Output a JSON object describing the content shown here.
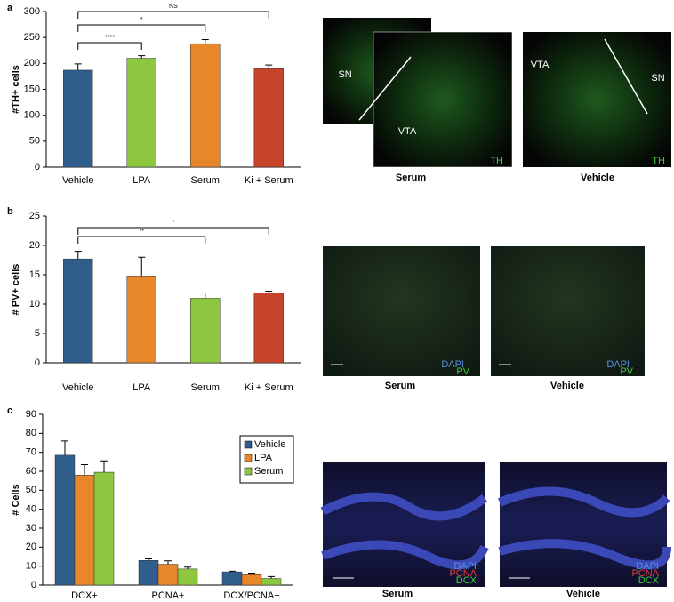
{
  "panel_labels": [
    "a",
    "b",
    "c"
  ],
  "chart_data": [
    {
      "type": "bar",
      "y_label": "#TH+ cells",
      "categories": [
        "Vehicle",
        "LPA",
        "Serum",
        "Ki + Serum"
      ],
      "values": [
        187,
        210,
        238,
        190
      ],
      "errors": [
        12,
        5,
        8,
        7
      ],
      "colors": [
        "#2f5d8c",
        "#8dc63f",
        "#e8862a",
        "#c7432b"
      ],
      "ylim": [
        0,
        300
      ],
      "yticks": [
        0,
        50,
        100,
        150,
        200,
        250,
        300
      ],
      "significance": [
        {
          "from": "Vehicle",
          "to": "LPA",
          "label": "****"
        },
        {
          "from": "Vehicle",
          "to": "Serum",
          "label": "*"
        },
        {
          "from": "Vehicle",
          "to": "Ki + Serum",
          "label": "NS"
        }
      ]
    },
    {
      "type": "bar",
      "y_label": "# PV+ cells",
      "categories": [
        "Vehicle",
        "LPA",
        "Serum",
        "Ki + Serum"
      ],
      "values": [
        17.7,
        14.8,
        11,
        11.9
      ],
      "errors": [
        1.3,
        3.2,
        0.9,
        0.3
      ],
      "colors": [
        "#2f5d8c",
        "#e8862a",
        "#8dc63f",
        "#c7432b"
      ],
      "ylim": [
        0,
        25
      ],
      "yticks": [
        0,
        5,
        10,
        15,
        20,
        25
      ],
      "significance": [
        {
          "from": "Vehicle",
          "to": "Serum",
          "label": "**"
        },
        {
          "from": "Vehicle",
          "to": "Ki + Serum",
          "label": "*"
        }
      ]
    },
    {
      "type": "grouped_bar",
      "y_label": "# Cells",
      "categories": [
        "DCX+",
        "PCNA+",
        "DCX/PCNA+"
      ],
      "series": [
        {
          "name": "Vehicle",
          "color": "#2f5d8c",
          "values": [
            68.5,
            13,
            7
          ],
          "errors": [
            7.5,
            0.8,
            0.3
          ]
        },
        {
          "name": "LPA",
          "color": "#e8862a",
          "values": [
            58,
            11,
            5.5
          ],
          "errors": [
            5.5,
            1.8,
            0.8
          ]
        },
        {
          "name": "Serum",
          "color": "#8dc63f",
          "values": [
            59.5,
            8.5,
            3.5
          ],
          "errors": [
            6,
            1,
            1
          ]
        }
      ],
      "ylim": [
        0,
        90
      ],
      "yticks": [
        0,
        10,
        20,
        30,
        40,
        50,
        60,
        70,
        80,
        90
      ],
      "legend": "upper right"
    }
  ],
  "images": [
    {
      "caption": "Serum",
      "labels": [
        "SN",
        "VTA",
        "TH"
      ]
    },
    {
      "caption": "Vehicle",
      "labels": [
        "VTA",
        "SN",
        "TH"
      ]
    },
    {
      "caption": "Serum",
      "labels": [
        "DAPI",
        "PV"
      ]
    },
    {
      "caption": "Vehicle",
      "labels": [
        "DAPI",
        "PV"
      ]
    },
    {
      "caption": "Serum",
      "labels": [
        "DAPI",
        "PCNA",
        "DCX"
      ]
    },
    {
      "caption": "Vehicle",
      "labels": [
        "DAPI",
        "PCNA",
        "DCX"
      ]
    }
  ]
}
